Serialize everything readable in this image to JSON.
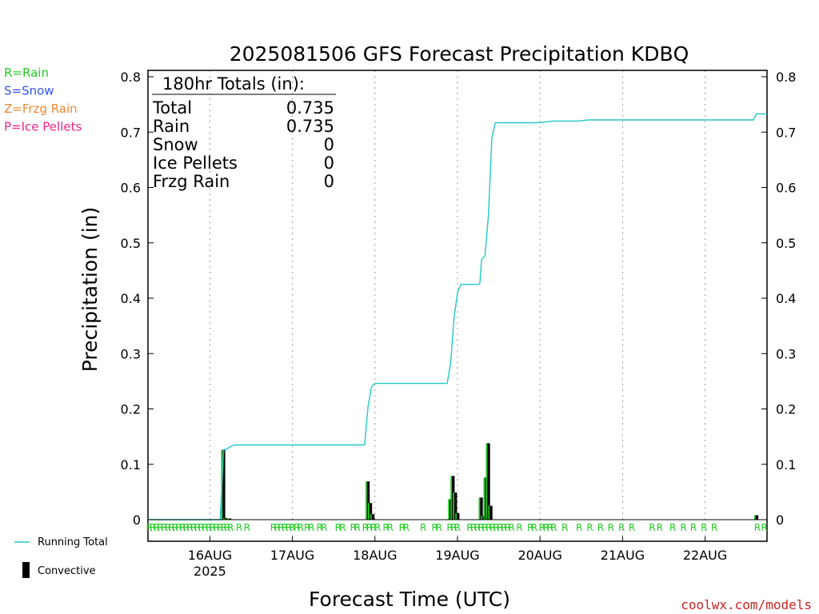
{
  "colors": {
    "rain": "#22cc22",
    "snow": "#3355ee",
    "frzg_rain": "#ee8833",
    "ice_pellets": "#ee2288",
    "running_total": "#22c8c8",
    "convective": "#000000",
    "credit": "#cc2222"
  },
  "credit": "coolwx.com/models",
  "type_legend": [
    {
      "label": "R=Rain",
      "color_key": "rain"
    },
    {
      "label": "S=Snow",
      "color_key": "snow"
    },
    {
      "label": "Z=Frzg Rain",
      "color_key": "frzg_rain"
    },
    {
      "label": "P=Ice Pellets",
      "color_key": "ice_pellets"
    }
  ],
  "series_legend": {
    "running_total": "Running Total",
    "convective": "Convective"
  },
  "totals_box": {
    "heading": "180hr Totals (in):",
    "rows": [
      {
        "label": "Total",
        "value": "0.735"
      },
      {
        "label": "Rain",
        "value": "0.735"
      },
      {
        "label": "Snow",
        "value": "0"
      },
      {
        "label": "Ice Pellets",
        "value": "0"
      },
      {
        "label": "Frzg Rain",
        "value": "0"
      }
    ]
  },
  "chart_data": {
    "type": "line",
    "title": "2025081506 GFS Forecast Precipitation KDBQ",
    "xlabel": "Forecast Time (UTC)",
    "ylabel": "Precipitation (in)",
    "x_units": "hours since 2025-08-15 06 UTC",
    "xlim": [
      0,
      180
    ],
    "ylim": [
      0,
      0.81
    ],
    "grid": "vertical dotted at day boundaries",
    "x_ticks": [
      {
        "x": 18,
        "label": "16AUG",
        "sublabel": "2025"
      },
      {
        "x": 42,
        "label": "17AUG"
      },
      {
        "x": 66,
        "label": "18AUG"
      },
      {
        "x": 90,
        "label": "19AUG"
      },
      {
        "x": 114,
        "label": "20AUG"
      },
      {
        "x": 138,
        "label": "21AUG"
      },
      {
        "x": 162,
        "label": "22AUG"
      }
    ],
    "y_ticks": [
      0,
      0.1,
      0.2,
      0.3,
      0.4,
      0.5,
      0.6,
      0.7,
      0.8
    ],
    "y_tick_labels": [
      "0",
      "0.1",
      "0.2",
      "0.3",
      "0.4",
      "0.5",
      "0.6",
      "0.7",
      "0.8"
    ],
    "series": [
      {
        "name": "Running Total",
        "points": [
          [
            0,
            0
          ],
          [
            21,
            0
          ],
          [
            22,
            0.126
          ],
          [
            23,
            0.128
          ],
          [
            24,
            0.132
          ],
          [
            25,
            0.135
          ],
          [
            63,
            0.135
          ],
          [
            64,
            0.205
          ],
          [
            65,
            0.24
          ],
          [
            66,
            0.246
          ],
          [
            87,
            0.246
          ],
          [
            88,
            0.283
          ],
          [
            89,
            0.365
          ],
          [
            90,
            0.41
          ],
          [
            91,
            0.425
          ],
          [
            96,
            0.425
          ],
          [
            96.5,
            0.427
          ],
          [
            97,
            0.47
          ],
          [
            98,
            0.477
          ],
          [
            99,
            0.55
          ],
          [
            100,
            0.69
          ],
          [
            101,
            0.717
          ],
          [
            113,
            0.717
          ],
          [
            115,
            0.718
          ],
          [
            118,
            0.72
          ],
          [
            125,
            0.72
          ],
          [
            128,
            0.722
          ],
          [
            176,
            0.722
          ],
          [
            177,
            0.733
          ],
          [
            180,
            0.733
          ]
        ]
      },
      {
        "name": "Convective",
        "bars": [
          [
            22,
            0.126
          ],
          [
            22.6,
            0.003
          ],
          [
            23.2,
            0.002
          ],
          [
            23.8,
            0.002
          ],
          [
            64,
            0.069
          ],
          [
            64.7,
            0.03
          ],
          [
            65.4,
            0.01
          ],
          [
            88,
            0.037
          ],
          [
            88.7,
            0.079
          ],
          [
            89.4,
            0.049
          ],
          [
            90.1,
            0.012
          ],
          [
            96.9,
            0.04
          ],
          [
            97.6,
            0.007
          ],
          [
            98.3,
            0.076
          ],
          [
            99,
            0.138
          ],
          [
            99.7,
            0.025
          ],
          [
            177,
            0.008
          ]
        ]
      }
    ],
    "precip_type_codes": {
      "code": "R",
      "hours": [
        0.4,
        1.4,
        2.5,
        3.6,
        4.7,
        5.8,
        6.9,
        7.9,
        9.0,
        10.1,
        11.1,
        12.2,
        13.3,
        14.4,
        15.5,
        16.6,
        17.7,
        18.8,
        19.9,
        21.0,
        22.0,
        23.0,
        24.0,
        26.5,
        28.8,
        36.5,
        37.6,
        38.7,
        39.8,
        40.9,
        42.0,
        43.3,
        44.4,
        46.3,
        47.5,
        49.9,
        51.2,
        55.3,
        56.6,
        59.7,
        60.9,
        63.2,
        64.4,
        65.6,
        66.8,
        69.2,
        70.4,
        73.9,
        75.1,
        80.0,
        83.4,
        84.6,
        87.8,
        88.9,
        90.0,
        93.6,
        94.7,
        95.8,
        96.9,
        98.0,
        99.1,
        100.2,
        101.3,
        102.4,
        103.5,
        104.6,
        105.7,
        108.0,
        111.2,
        112.3,
        114.6,
        115.8,
        116.9,
        118.0,
        121.2,
        125.4,
        128.5,
        131.6,
        134.6,
        137.7,
        140.7,
        146.6,
        148.8,
        152.6,
        155.7,
        158.6,
        161.7,
        164.7,
        177.2,
        179.2
      ]
    }
  }
}
